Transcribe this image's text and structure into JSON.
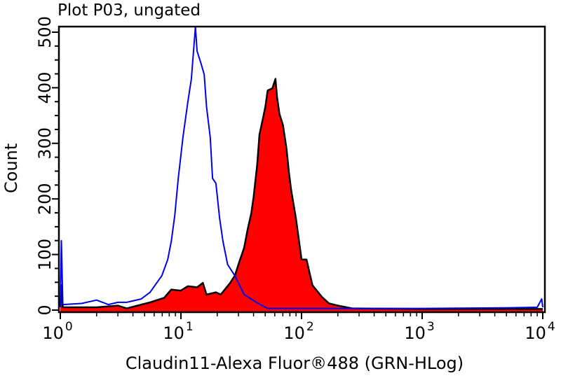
{
  "chart_data": {
    "type": "area",
    "title": "Plot P03, ungated",
    "xlabel": "Claudin11-Alexa Fluor®488 (GRN-HLog)",
    "ylabel": "Count",
    "xscale": "log",
    "xlim": [
      1,
      10000
    ],
    "ylim": [
      0,
      510
    ],
    "x_ticks": [
      {
        "base": "10",
        "exp": "0",
        "value": 1
      },
      {
        "base": "10",
        "exp": "1",
        "value": 10
      },
      {
        "base": "10",
        "exp": "2",
        "value": 100
      },
      {
        "base": "10",
        "exp": "3",
        "value": 1000
      },
      {
        "base": "10",
        "exp": "4",
        "value": 10000
      }
    ],
    "y_ticks": [
      "0",
      "100",
      "200",
      "300",
      "400",
      "500"
    ],
    "grid": false,
    "series": [
      {
        "style": "outline",
        "color": "#0000ee",
        "x": [
          1.0,
          1.02,
          1.05,
          1.5,
          2,
          2.5,
          3,
          3.55,
          4.68,
          5.55,
          6.95,
          7.78,
          8.32,
          8.89,
          9.5,
          10.4,
          11.4,
          12.2,
          13.2,
          13.6,
          14.6,
          15.6,
          16.3,
          17.5,
          18.3,
          19.5,
          20.9,
          22.3,
          24.4,
          28.0,
          33.4,
          43.8,
          52.4,
          81.7,
          200,
          1000,
          5000,
          9000,
          9800,
          10000
        ],
        "y": [
          5,
          125,
          10,
          12,
          18,
          10,
          14,
          14,
          20,
          32,
          62,
          91,
          124,
          170,
          237,
          311,
          374,
          416,
          510,
          466,
          445,
          424,
          366,
          311,
          237,
          228,
          166,
          124,
          82,
          62,
          28,
          12,
          3,
          3,
          3,
          3,
          4,
          5,
          20,
          5
        ]
      },
      {
        "style": "filled",
        "color": "#ff0000",
        "edge": "#000000",
        "x": [
          1.0,
          1.02,
          1.05,
          2,
          3,
          3.55,
          5.55,
          7.26,
          8.32,
          9.95,
          11.4,
          13.6,
          15.2,
          16.3,
          19.5,
          21.4,
          25.6,
          28.0,
          30.5,
          33.4,
          35.7,
          38.3,
          40.0,
          42.9,
          44.8,
          47.9,
          50.1,
          52.4,
          57.3,
          60.8,
          62.7,
          65.6,
          70.1,
          75.0,
          78.5,
          82.0,
          89.7,
          100,
          110,
          123,
          147,
          169,
          201,
          264,
          1000,
          10000
        ],
        "y": [
          5,
          45,
          5,
          5,
          8,
          3,
          14,
          22,
          37,
          35,
          43,
          41,
          49,
          28,
          32,
          28,
          49,
          62,
          87,
          112,
          145,
          174,
          203,
          262,
          316,
          345,
          366,
          395,
          399,
          416,
          383,
          353,
          333,
          291,
          249,
          216,
          166,
          91,
          91,
          45,
          24,
          12,
          8,
          3,
          2,
          2
        ]
      }
    ]
  }
}
